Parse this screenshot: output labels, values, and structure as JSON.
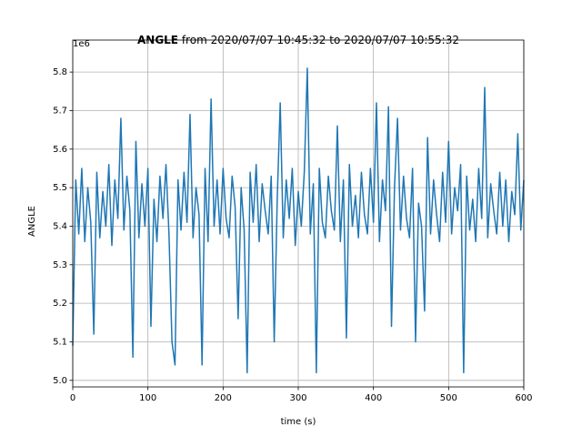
{
  "chart_data": {
    "type": "line",
    "title": {
      "bold": "ANGLE",
      "rest": " from 2020/07/07 10:45:32 to 2020/07/07 10:55:32"
    },
    "offset_label": "1e6",
    "xlabel": "time (s)",
    "ylabel": "ANGLE",
    "xlim": [
      0,
      600
    ],
    "xticks": [
      0,
      100,
      200,
      300,
      400,
      500,
      600
    ],
    "ylim": [
      4.983,
      5.883
    ],
    "yticks": [
      {
        "value": 5,
        "label": "5.0"
      },
      5.1,
      5.2,
      5.3,
      5.4,
      5.5,
      5.6,
      5.7,
      5.8
    ],
    "grid": true,
    "color": "#1f77b4",
    "x": [
      0,
      4,
      8,
      12,
      16,
      20,
      24,
      28,
      32,
      36,
      40,
      44,
      48,
      52,
      56,
      60,
      64,
      68,
      72,
      76,
      80,
      84,
      88,
      92,
      96,
      100,
      104,
      108,
      112,
      116,
      120,
      124,
      128,
      132,
      136,
      140,
      144,
      148,
      152,
      156,
      160,
      164,
      168,
      172,
      176,
      180,
      184,
      188,
      192,
      196,
      200,
      204,
      208,
      212,
      216,
      220,
      224,
      228,
      232,
      236,
      240,
      244,
      248,
      252,
      256,
      260,
      264,
      268,
      272,
      276,
      280,
      284,
      288,
      292,
      296,
      300,
      304,
      308,
      312,
      316,
      320,
      324,
      328,
      332,
      336,
      340,
      344,
      348,
      352,
      356,
      360,
      364,
      368,
      372,
      376,
      380,
      384,
      388,
      392,
      396,
      400,
      404,
      408,
      412,
      416,
      420,
      424,
      428,
      432,
      436,
      440,
      444,
      448,
      452,
      456,
      460,
      464,
      468,
      472,
      476,
      480,
      484,
      488,
      492,
      496,
      500,
      504,
      508,
      512,
      516,
      520,
      524,
      528,
      532,
      536,
      540,
      544,
      548,
      552,
      556,
      560,
      564,
      568,
      572,
      576,
      580,
      584,
      588,
      592,
      596,
      600
    ],
    "values": [
      5.09,
      5.52,
      5.38,
      5.55,
      5.36,
      5.5,
      5.41,
      5.12,
      5.54,
      5.37,
      5.49,
      5.4,
      5.56,
      5.35,
      5.52,
      5.42,
      5.68,
      5.39,
      5.53,
      5.44,
      5.06,
      5.62,
      5.37,
      5.51,
      5.4,
      5.55,
      5.14,
      5.47,
      5.36,
      5.53,
      5.42,
      5.56,
      5.38,
      5.1,
      5.04,
      5.52,
      5.39,
      5.54,
      5.41,
      5.69,
      5.37,
      5.5,
      5.43,
      5.04,
      5.55,
      5.36,
      5.73,
      5.4,
      5.52,
      5.38,
      5.55,
      5.42,
      5.37,
      5.53,
      5.45,
      5.16,
      5.5,
      5.39,
      5.02,
      5.54,
      5.41,
      5.56,
      5.36,
      5.51,
      5.44,
      5.38,
      5.53,
      5.1,
      5.47,
      5.72,
      5.37,
      5.52,
      5.42,
      5.55,
      5.35,
      5.49,
      5.4,
      5.54,
      5.81,
      5.38,
      5.51,
      5.02,
      5.55,
      5.41,
      5.37,
      5.53,
      5.44,
      5.39,
      5.66,
      5.36,
      5.52,
      5.11,
      5.56,
      5.4,
      5.48,
      5.37,
      5.54,
      5.43,
      5.38,
      5.55,
      5.41,
      5.72,
      5.36,
      5.52,
      5.44,
      5.71,
      5.14,
      5.5,
      5.68,
      5.39,
      5.53,
      5.42,
      5.37,
      5.55,
      5.1,
      5.46,
      5.4,
      5.18,
      5.63,
      5.38,
      5.52,
      5.43,
      5.36,
      5.54,
      5.41,
      5.62,
      5.38,
      5.5,
      5.44,
      5.56,
      5.02,
      5.53,
      5.39,
      5.47,
      5.36,
      5.55,
      5.42,
      5.76,
      5.37,
      5.51,
      5.44,
      5.38,
      5.54,
      5.4,
      5.52,
      5.36,
      5.49,
      5.43,
      5.64,
      5.39,
      5.52
    ]
  }
}
